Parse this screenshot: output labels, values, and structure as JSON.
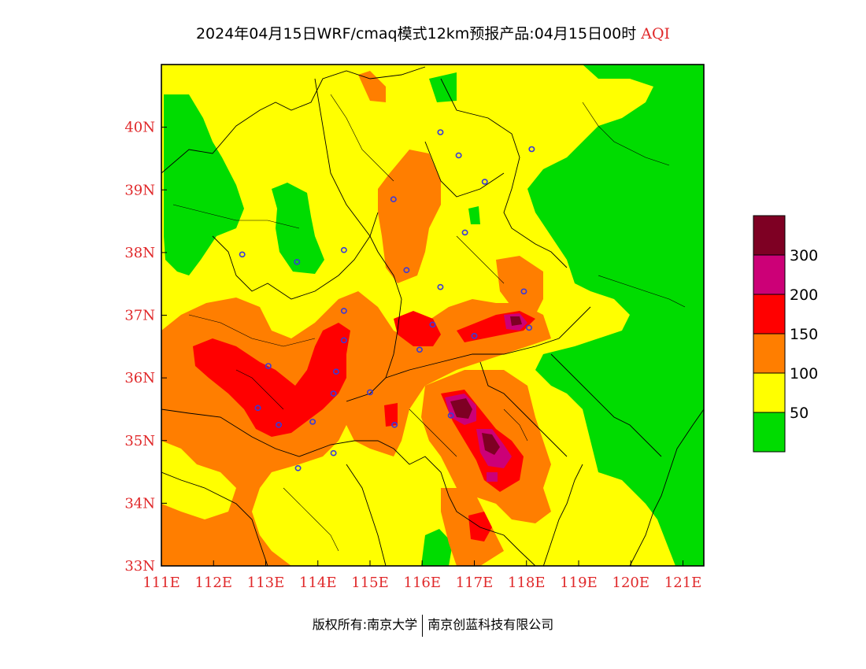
{
  "title": {
    "main": "2024年04月15日WRF/cmaq模式12km预报产品:04月15日00时",
    "variable": "AQI"
  },
  "map": {
    "lon_range": [
      111,
      121.4
    ],
    "lat_range": [
      33,
      41
    ],
    "x_ticks": [
      "111E",
      "112E",
      "113E",
      "114E",
      "115E",
      "116E",
      "117E",
      "118E",
      "119E",
      "120E",
      "121E"
    ],
    "y_ticks": [
      "33N",
      "34N",
      "35N",
      "36N",
      "37N",
      "38N",
      "39N",
      "40N"
    ],
    "axis_label_color": "#e0282a"
  },
  "legend": {
    "colors": [
      "#00dc00",
      "#ffff00",
      "#ff7e00",
      "#ff0000",
      "#cc0077",
      "#7e0023"
    ],
    "labels": [
      "50",
      "100",
      "150",
      "200",
      "300"
    ]
  },
  "stations": [
    {
      "lon": 112.55,
      "lat": 37.97
    },
    {
      "lon": 113.05,
      "lat": 36.19
    },
    {
      "lon": 112.85,
      "lat": 35.52
    },
    {
      "lon": 113.25,
      "lat": 35.25
    },
    {
      "lon": 113.6,
      "lat": 37.85
    },
    {
      "lon": 113.62,
      "lat": 34.56
    },
    {
      "lon": 113.9,
      "lat": 35.3
    },
    {
      "lon": 114.3,
      "lat": 34.8
    },
    {
      "lon": 114.3,
      "lat": 35.75
    },
    {
      "lon": 114.35,
      "lat": 36.1
    },
    {
      "lon": 114.5,
      "lat": 36.6
    },
    {
      "lon": 114.5,
      "lat": 37.07
    },
    {
      "lon": 114.5,
      "lat": 38.04
    },
    {
      "lon": 115.0,
      "lat": 35.77
    },
    {
      "lon": 115.45,
      "lat": 38.85
    },
    {
      "lon": 115.47,
      "lat": 35.25
    },
    {
      "lon": 115.7,
      "lat": 37.72
    },
    {
      "lon": 115.95,
      "lat": 36.45
    },
    {
      "lon": 116.2,
      "lat": 36.85
    },
    {
      "lon": 116.35,
      "lat": 39.92
    },
    {
      "lon": 116.35,
      "lat": 37.45
    },
    {
      "lon": 116.55,
      "lat": 35.4
    },
    {
      "lon": 116.7,
      "lat": 39.55
    },
    {
      "lon": 116.82,
      "lat": 38.32
    },
    {
      "lon": 117.0,
      "lat": 36.67
    },
    {
      "lon": 117.2,
      "lat": 39.13
    },
    {
      "lon": 117.95,
      "lat": 37.38
    },
    {
      "lon": 118.05,
      "lat": 36.8
    },
    {
      "lon": 118.1,
      "lat": 39.65
    }
  ],
  "footer": {
    "copyright": "版权所有:南京大学",
    "company": "南京创蓝科技有限公司"
  }
}
